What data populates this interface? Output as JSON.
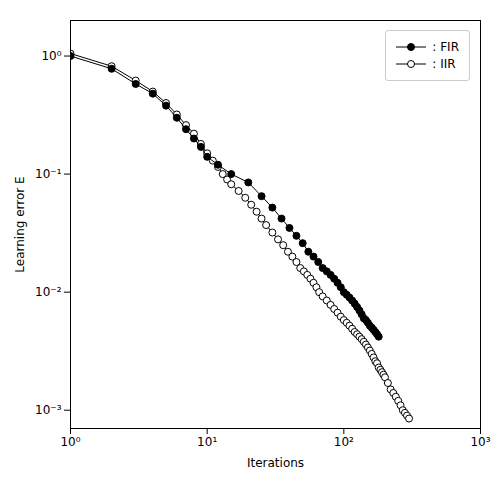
{
  "chart_data": {
    "type": "line",
    "xlabel": "Iterations",
    "ylabel": "Learning error E",
    "log": true,
    "xlim": [
      1,
      1000
    ],
    "ylim": [
      0.0007,
      2.0
    ],
    "xticks": [
      {
        "value": 1,
        "label": "10⁰"
      },
      {
        "value": 10,
        "label": "10¹"
      },
      {
        "value": 100,
        "label": "10²"
      },
      {
        "value": 1000,
        "label": "10³"
      }
    ],
    "yticks": [
      {
        "value": 0.001,
        "label": "10⁻³"
      },
      {
        "value": 0.01,
        "label": "10⁻²"
      },
      {
        "value": 0.1,
        "label": "10⁻¹"
      },
      {
        "value": 1,
        "label": "10⁰"
      }
    ],
    "grid": false,
    "legend": "upper right",
    "series": [
      {
        "name": ": IIR",
        "color": "black",
        "marker": "open_circle",
        "x": [
          1,
          2,
          3,
          4,
          5,
          6,
          7,
          8,
          9,
          10,
          11,
          12,
          13,
          14,
          15,
          17,
          19,
          21,
          23,
          25,
          27,
          30,
          33,
          36,
          39,
          42,
          45,
          48,
          51,
          54,
          57,
          60,
          63,
          66,
          70,
          75,
          80,
          85,
          90,
          95,
          100,
          105,
          110,
          115,
          120,
          125,
          130,
          135,
          140,
          145,
          150,
          155,
          160,
          165,
          170,
          175,
          180,
          185,
          190,
          195,
          200,
          210,
          220,
          230,
          240,
          250,
          260,
          270,
          280,
          290,
          300
        ],
        "values": [
          1.05,
          0.82,
          0.62,
          0.5,
          0.4,
          0.32,
          0.26,
          0.22,
          0.18,
          0.15,
          0.13,
          0.115,
          0.1,
          0.09,
          0.082,
          0.072,
          0.063,
          0.055,
          0.048,
          0.042,
          0.037,
          0.032,
          0.028,
          0.025,
          0.022,
          0.02,
          0.018,
          0.016,
          0.015,
          0.014,
          0.013,
          0.012,
          0.011,
          0.01,
          0.0092,
          0.0085,
          0.0078,
          0.0072,
          0.0067,
          0.0062,
          0.0058,
          0.0055,
          0.0052,
          0.0049,
          0.0046,
          0.0044,
          0.0042,
          0.004,
          0.0038,
          0.0036,
          0.0034,
          0.0032,
          0.003,
          0.0028,
          0.0026,
          0.0025,
          0.0023,
          0.0022,
          0.0021,
          0.002,
          0.0019,
          0.0017,
          0.0015,
          0.0014,
          0.0013,
          0.0012,
          0.0011,
          0.001,
          0.00095,
          0.0009,
          0.00085
        ]
      },
      {
        "name": ": FIR",
        "color": "black",
        "marker": "filled_circle",
        "x": [
          1,
          2,
          3,
          4,
          5,
          6,
          7,
          8,
          9,
          10,
          12,
          15,
          20,
          25,
          30,
          35,
          40,
          45,
          50,
          55,
          60,
          65,
          70,
          75,
          80,
          85,
          90,
          95,
          100,
          105,
          110,
          115,
          120,
          125,
          130,
          135,
          140,
          145,
          150,
          155,
          160,
          165,
          170,
          175,
          180
        ],
        "values": [
          1.0,
          0.78,
          0.58,
          0.48,
          0.38,
          0.3,
          0.24,
          0.2,
          0.17,
          0.14,
          0.12,
          0.1,
          0.085,
          0.065,
          0.052,
          0.042,
          0.035,
          0.03,
          0.026,
          0.022,
          0.02,
          0.018,
          0.016,
          0.015,
          0.014,
          0.013,
          0.012,
          0.011,
          0.01,
          0.0095,
          0.009,
          0.0085,
          0.008,
          0.0075,
          0.007,
          0.0065,
          0.006,
          0.0058,
          0.0055,
          0.0052,
          0.005,
          0.0048,
          0.0046,
          0.0044,
          0.0042
        ]
      }
    ]
  }
}
